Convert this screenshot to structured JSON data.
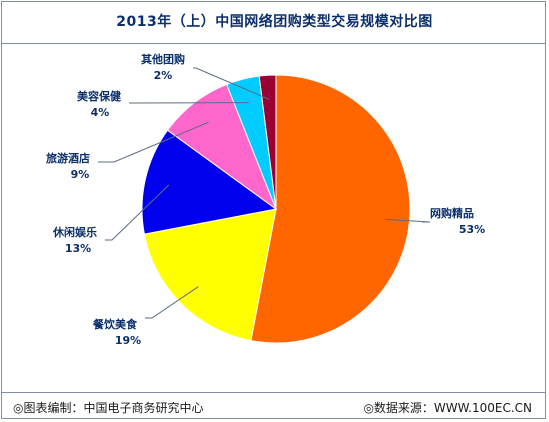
{
  "title": "2013年（上）中国网络团购类型交易规模对比图",
  "footer": {
    "source_left": "◎图表编制：中国电子商务研究中心",
    "source_right": "◎数据来源：WWW.100EC.CN"
  },
  "colors": {
    "title": "#0b2f6b",
    "border": "#7f8da6"
  },
  "chart_data": {
    "type": "pie",
    "title": "2013年（上）中国网络团购类型交易规模对比图",
    "start_angle_deg": 0,
    "direction": "clockwise",
    "slices": [
      {
        "name": "网购精品",
        "value": 53,
        "label": "53%",
        "color": "#ff6600"
      },
      {
        "name": "餐饮美食",
        "value": 19,
        "label": "19%",
        "color": "#ffff00"
      },
      {
        "name": "休闲娱乐",
        "value": 13,
        "label": "13%",
        "color": "#0000ee"
      },
      {
        "name": "旅游酒店",
        "value": 9,
        "label": "9%",
        "color": "#ff66cc"
      },
      {
        "name": "美容保健",
        "value": 4,
        "label": "4%",
        "color": "#00ccff"
      },
      {
        "name": "其他团购",
        "value": 2,
        "label": "2%",
        "color": "#990033"
      }
    ]
  }
}
